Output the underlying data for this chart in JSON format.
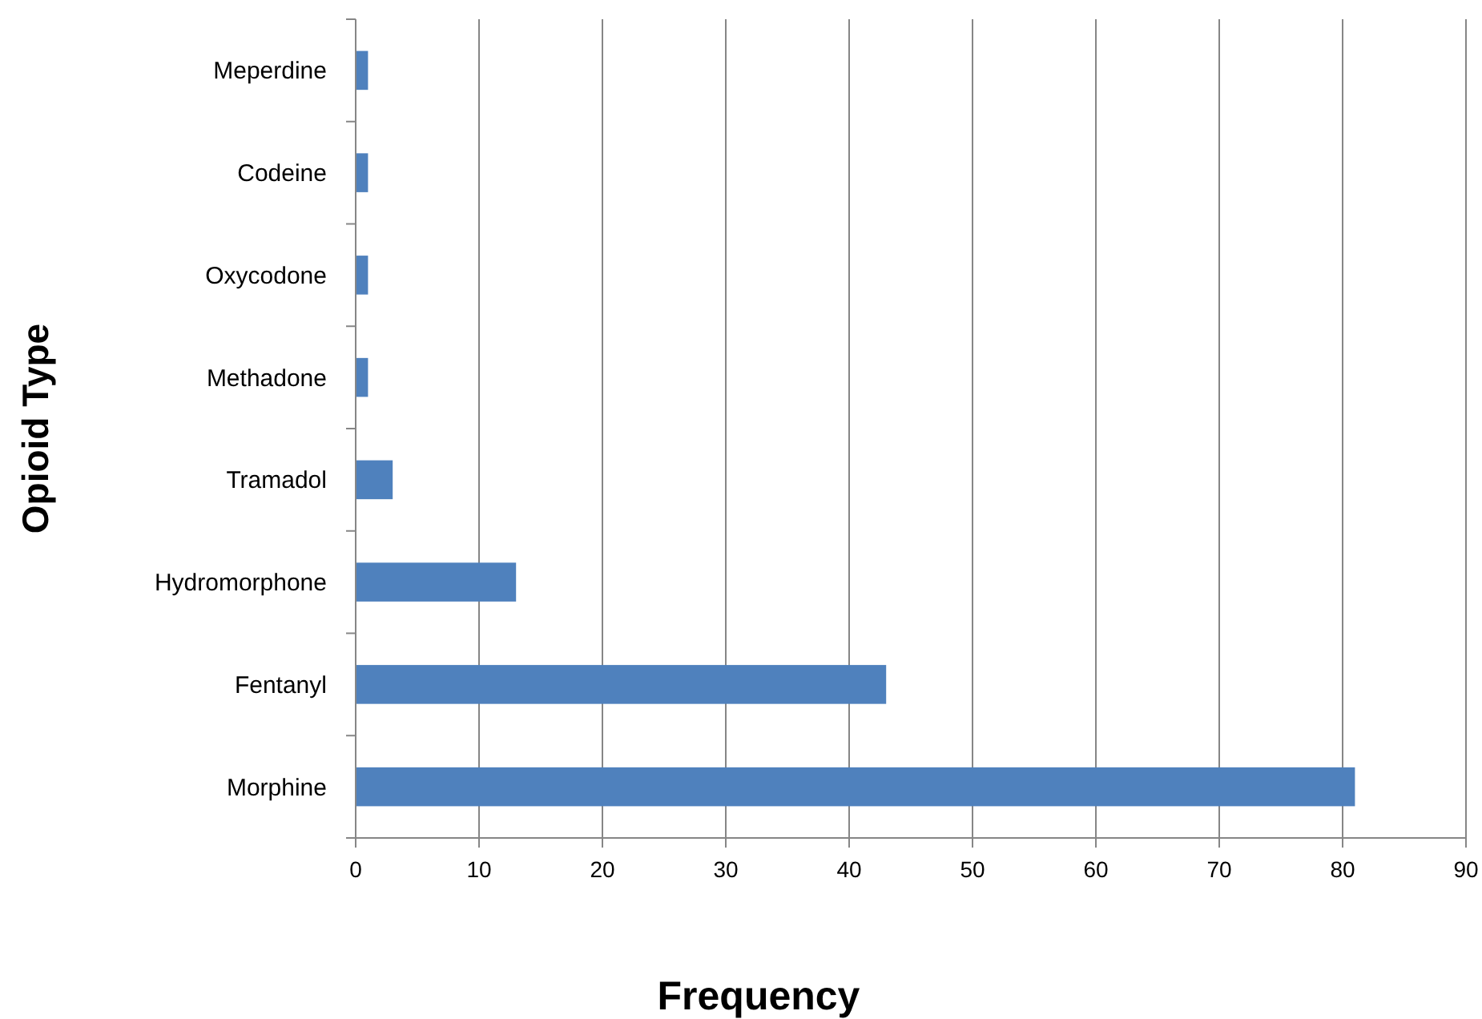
{
  "chart_data": {
    "type": "bar",
    "orientation": "horizontal",
    "xlabel": "Frequency",
    "ylabel": "Opioid Type",
    "categories": [
      "Meperdine",
      "Codeine",
      "Oxycodone",
      "Methadone",
      "Tramadol",
      "Hydromorphone",
      "Fentanyl",
      "Morphine"
    ],
    "values": [
      1,
      1,
      1,
      1,
      3,
      13,
      43,
      81
    ],
    "color": "#4f81bd",
    "xlim": [
      0,
      90
    ],
    "xticks": [
      0,
      10,
      20,
      30,
      40,
      50,
      60,
      70,
      80,
      90
    ],
    "grid": "x"
  }
}
